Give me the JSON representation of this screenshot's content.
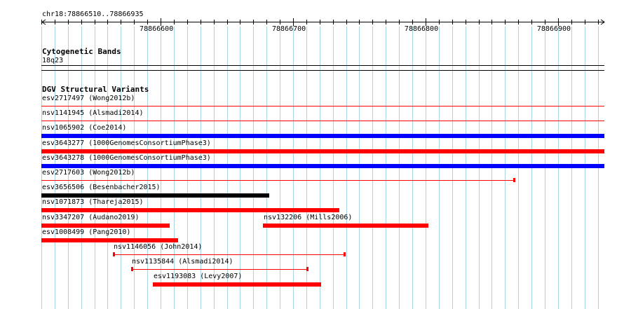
{
  "ruler": {
    "location": "chr18:78866510..78866935",
    "tick_labels": [
      "78866600",
      "78866700",
      "78866800",
      "78866900"
    ]
  },
  "cytoband_track": {
    "title": "Cytogenetic Bands",
    "band": "18q23"
  },
  "dgv_track": {
    "title": "DGV Structural Variants",
    "colors": {
      "loss": "#ff0000",
      "gain": "#0000ff",
      "gain_loss": "#000000"
    },
    "features": [
      {
        "id": "esv2717497",
        "label": "esv2717497 (Wong2012b)",
        "start": 78866510,
        "end": 78866935,
        "color": "#ff0000",
        "style": "thin",
        "row": 0
      },
      {
        "id": "nsv1141945",
        "label": "nsv1141945 (Alsmadi2014)",
        "start": 78866510,
        "end": 78866935,
        "color": "#ff0000",
        "style": "thin",
        "row": 1
      },
      {
        "id": "nsv1065902",
        "label": "nsv1065902 (Coe2014)",
        "start": 78866510,
        "end": 78866935,
        "color": "#0000ff",
        "style": "thick",
        "row": 2
      },
      {
        "id": "esv3643277",
        "label": "esv3643277 (1000GenomesConsortiumPhase3)",
        "start": 78866510,
        "end": 78866935,
        "color": "#ff0000",
        "style": "thick",
        "row": 3
      },
      {
        "id": "esv3643278",
        "label": "esv3643278 (1000GenomesConsortiumPhase3)",
        "start": 78866510,
        "end": 78866935,
        "color": "#0000ff",
        "style": "thick",
        "row": 4
      },
      {
        "id": "esv2717603",
        "label": "esv2717603 (Wong2012b)",
        "start": 78866510,
        "end": 78866867,
        "color": "#ff0000",
        "style": "thin",
        "row": 5
      },
      {
        "id": "esv3656506",
        "label": "esv3656506 (Besenbacher2015)",
        "start": 78866510,
        "end": 78866682,
        "color": "#000000",
        "style": "thick",
        "row": 6
      },
      {
        "id": "nsv1071873",
        "label": "nsv1071873 (Thareja2015)",
        "start": 78866510,
        "end": 78866735,
        "color": "#ff0000",
        "style": "thick",
        "row": 7
      },
      {
        "id": "nsv3347207",
        "label": "nsv3347207 (Audano2019)",
        "start": 78866510,
        "end": 78866607,
        "color": "#ff0000",
        "style": "thick",
        "row": 8
      },
      {
        "id": "nsv132206",
        "label": "nsv132206 (Mills2006)",
        "start": 78866677,
        "end": 78866802,
        "color": "#ff0000",
        "style": "thick",
        "row": 8
      },
      {
        "id": "esv1008499",
        "label": "esv1008499 (Pang2010)",
        "start": 78866510,
        "end": 78866613,
        "color": "#ff0000",
        "style": "thick",
        "row": 9
      },
      {
        "id": "nsv1146056",
        "label": "nsv1146056 (John2014)",
        "start": 78866564,
        "end": 78866739,
        "color": "#ff0000",
        "style": "thin",
        "row": 10
      },
      {
        "id": "nsv1135844",
        "label": "nsv1135844 (Alsmadi2014)",
        "start": 78866578,
        "end": 78866711,
        "color": "#ff0000",
        "style": "thin",
        "row": 11
      },
      {
        "id": "esv1193083",
        "label": "esv1193083 (Levy2007)",
        "start": 78866594,
        "end": 78866721,
        "color": "#ff0000",
        "style": "thick",
        "row": 12
      }
    ]
  }
}
